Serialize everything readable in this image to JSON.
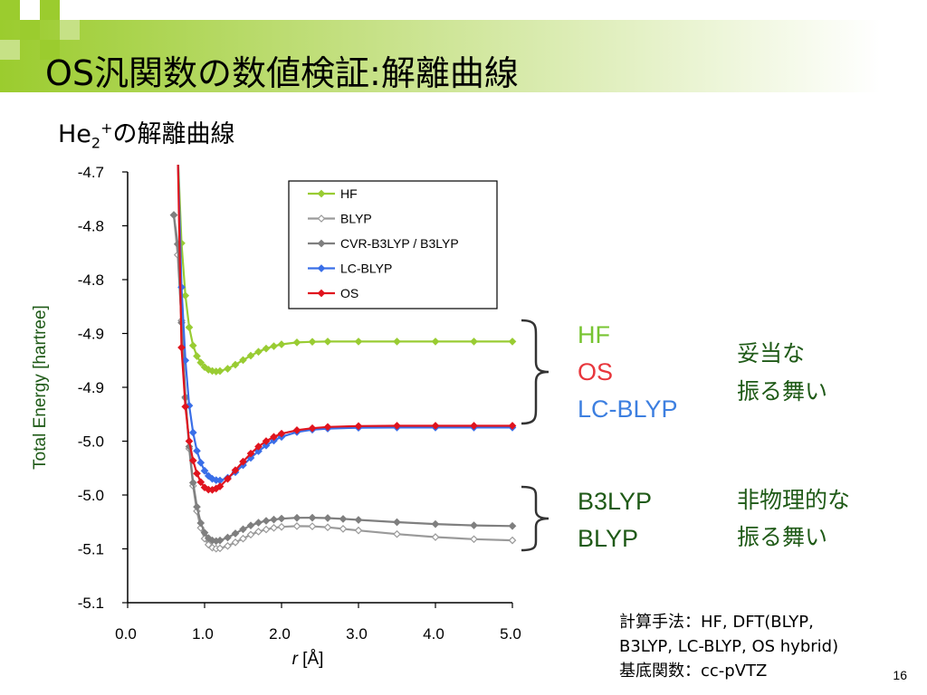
{
  "slide": {
    "title": "OS汎関数の数値検証:解離曲線",
    "subtitle": {
      "main": "He",
      "sub": "2",
      "sup": "+",
      "rest": "の解離曲線"
    },
    "page_number": "16"
  },
  "colors": {
    "hf": "#99cc33",
    "blyp": "#9a9a9a",
    "cvr": "#7f7f7f",
    "lc": "#3a6fe8",
    "os": "#e0141e",
    "note_green": "#1f5a17",
    "accent_green": "#6eb52e"
  },
  "annotations": {
    "group1": {
      "labels": [
        {
          "text": "HF",
          "color": "#77c431"
        },
        {
          "text": "OS",
          "color": "#e8363c"
        },
        {
          "text": "LC-BLYP",
          "color": "#3d7fe0"
        }
      ],
      "note": [
        "妥当な",
        "振る舞い"
      ]
    },
    "group2": {
      "labels": [
        {
          "text": "B3LYP",
          "color": "#1f5a17"
        },
        {
          "text": "BLYP",
          "color": "#1f5a17"
        }
      ],
      "note": [
        "非物理的な",
        "振る舞い"
      ]
    }
  },
  "method_note": [
    "計算手法：HF, DFT(BLYP,",
    "B3LYP, LC-BLYP, OS hybrid)",
    "基底関数：cc-pVTZ"
  ],
  "chart_data": {
    "type": "line",
    "xlabel_italic": "r",
    "xlabel_rest": " [Å]",
    "ylabel": "Total Energy [hartree]",
    "xlim": [
      0.0,
      5.0
    ],
    "ylim": [
      -5.12,
      -4.72
    ],
    "x_ticks": [
      "0.0",
      "1.0",
      "2.0",
      "3.0",
      "4.0",
      "5.0"
    ],
    "y_tick_labels": [
      "-4.7",
      "-4.8",
      "-4.8",
      "-4.9",
      "-4.9",
      "-5.0",
      "-5.0",
      "-5.1",
      "-5.1"
    ],
    "legend_position": "top-right",
    "series": [
      {
        "name": "HF",
        "marker": "filled-diamond",
        "color": "#99cc33",
        "x": [
          0.65,
          0.7,
          0.75,
          0.8,
          0.85,
          0.9,
          0.95,
          1.0,
          1.05,
          1.1,
          1.15,
          1.2,
          1.3,
          1.4,
          1.5,
          1.6,
          1.7,
          1.8,
          1.9,
          2.0,
          2.2,
          2.4,
          2.6,
          3.0,
          3.5,
          4.0,
          4.5,
          5.0
        ],
        "y": [
          -4.7,
          -4.7862,
          -4.8348,
          -4.8643,
          -4.8812,
          -4.891,
          -4.897,
          -4.9012,
          -4.9036,
          -4.9048,
          -4.9053,
          -4.9049,
          -4.9028,
          -4.899,
          -4.8947,
          -4.8906,
          -4.887,
          -4.884,
          -4.8818,
          -4.8801,
          -4.8783,
          -4.8777,
          -4.8775,
          -4.8775,
          -4.8775,
          -4.8775,
          -4.8775,
          -4.8775
        ]
      },
      {
        "name": "BLYP",
        "marker": "open-diamond",
        "color": "#9a9a9a",
        "x": [
          0.6,
          0.65,
          0.7,
          0.75,
          0.8,
          0.85,
          0.9,
          0.95,
          1.0,
          1.05,
          1.1,
          1.15,
          1.2,
          1.3,
          1.4,
          1.5,
          1.6,
          1.7,
          1.8,
          1.9,
          2.0,
          2.2,
          2.4,
          2.6,
          2.8,
          3.0,
          3.5,
          4.0,
          4.5,
          5.0
        ],
        "y": [
          -4.76,
          -4.797,
          -4.858,
          -4.93,
          -4.977,
          -5.0115,
          -5.035,
          -5.0505,
          -5.0605,
          -5.0661,
          -5.0689,
          -5.0698,
          -5.0695,
          -5.0673,
          -5.064,
          -5.0605,
          -5.0568,
          -5.054,
          -5.052,
          -5.0505,
          -5.0496,
          -5.0489,
          -5.0491,
          -5.05,
          -5.0514,
          -5.0529,
          -5.0563,
          -5.0591,
          -5.061,
          -5.0621
        ]
      },
      {
        "name": "CVR-B3LYP / B3LYP",
        "marker": "filled-diamond",
        "color": "#7f7f7f",
        "x": [
          0.6,
          0.65,
          0.7,
          0.75,
          0.8,
          0.85,
          0.9,
          0.95,
          1.0,
          1.05,
          1.1,
          1.15,
          1.2,
          1.3,
          1.4,
          1.5,
          1.6,
          1.7,
          1.8,
          1.9,
          2.0,
          2.2,
          2.4,
          2.6,
          2.8,
          3.0,
          3.5,
          4.0,
          4.5,
          5.0
        ],
        "y": [
          -4.76,
          -4.787,
          -4.86,
          -4.929,
          -4.975,
          -5.0085,
          -5.031,
          -5.046,
          -5.055,
          -5.06,
          -5.0622,
          -5.0628,
          -5.0622,
          -5.0595,
          -5.0557,
          -5.0518,
          -5.0483,
          -5.0457,
          -5.044,
          -5.0428,
          -5.0419,
          -5.0412,
          -5.0411,
          -5.0414,
          -5.0422,
          -5.0431,
          -5.0452,
          -5.047,
          -5.0482,
          -5.0488
        ]
      },
      {
        "name": "LC-BLYP",
        "marker": "filled-diamond",
        "color": "#3a6fe8",
        "x": [
          0.65,
          0.7,
          0.75,
          0.8,
          0.85,
          0.9,
          0.95,
          1.0,
          1.05,
          1.1,
          1.15,
          1.2,
          1.3,
          1.4,
          1.5,
          1.6,
          1.7,
          1.8,
          1.9,
          2.0,
          2.2,
          2.4,
          2.6,
          3.0,
          3.5,
          4.0,
          4.5,
          5.0
        ],
        "y": [
          -4.7,
          -4.827,
          -4.895,
          -4.937,
          -4.962,
          -4.979,
          -4.99,
          -4.9975,
          -5.0022,
          -5.005,
          -5.0062,
          -5.0065,
          -5.004,
          -4.9988,
          -4.9923,
          -4.9855,
          -4.9793,
          -4.974,
          -4.9695,
          -4.966,
          -4.9615,
          -4.9593,
          -4.9583,
          -4.9575,
          -4.9573,
          -4.9573,
          -4.9573,
          -4.9573
        ]
      },
      {
        "name": "OS",
        "marker": "filled-diamond",
        "color": "#e0141e",
        "x": [
          0.65,
          0.7,
          0.75,
          0.8,
          0.85,
          0.9,
          0.95,
          1.0,
          1.05,
          1.1,
          1.15,
          1.2,
          1.3,
          1.4,
          1.5,
          1.6,
          1.7,
          1.8,
          1.9,
          2.0,
          2.2,
          2.4,
          2.6,
          3.0,
          3.5,
          4.0,
          4.5,
          5.0
        ],
        "y": [
          -4.7,
          -4.883,
          -4.938,
          -4.97,
          -4.988,
          -5.0,
          -5.008,
          -5.013,
          -5.015,
          -5.0152,
          -5.014,
          -5.012,
          -5.005,
          -4.997,
          -4.989,
          -4.9815,
          -4.975,
          -4.97,
          -4.966,
          -4.963,
          -4.9598,
          -4.958,
          -4.9568,
          -4.956,
          -4.9557,
          -4.9557,
          -4.9557,
          -4.9557
        ]
      }
    ]
  }
}
